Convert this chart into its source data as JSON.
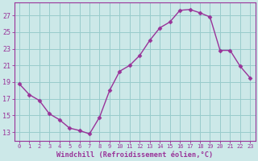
{
  "x": [
    0,
    1,
    2,
    3,
    4,
    5,
    6,
    7,
    8,
    9,
    10,
    11,
    12,
    13,
    14,
    15,
    16,
    17,
    18,
    19,
    20,
    21,
    22,
    23
  ],
  "y": [
    18.8,
    17.5,
    16.8,
    15.2,
    14.5,
    13.5,
    13.2,
    12.8,
    14.8,
    18.0,
    20.3,
    21.0,
    22.2,
    24.0,
    25.5,
    26.2,
    27.6,
    27.7,
    27.3,
    26.8,
    22.8,
    22.8,
    20.9,
    19.5
  ],
  "line_color": "#993399",
  "marker": "D",
  "marker_size": 2.5,
  "bg_color": "#cce8e8",
  "grid_color": "#99cccc",
  "xlabel": "Windchill (Refroidissement éolien,°C)",
  "ylabel_ticks": [
    13,
    15,
    17,
    19,
    21,
    23,
    25,
    27
  ],
  "ylim": [
    12.0,
    28.5
  ],
  "xlim": [
    -0.5,
    23.5
  ],
  "xtick_labels": [
    "0",
    "1",
    "2",
    "3",
    "4",
    "5",
    "6",
    "7",
    "8",
    "9",
    "10",
    "11",
    "12",
    "13",
    "14",
    "15",
    "16",
    "17",
    "18",
    "19",
    "20",
    "21",
    "22",
    "23"
  ],
  "axes_color": "#993399",
  "tick_color": "#993399",
  "label_color": "#993399",
  "xtick_fontsize": 5.0,
  "ytick_fontsize": 6.0,
  "xlabel_fontsize": 6.2
}
